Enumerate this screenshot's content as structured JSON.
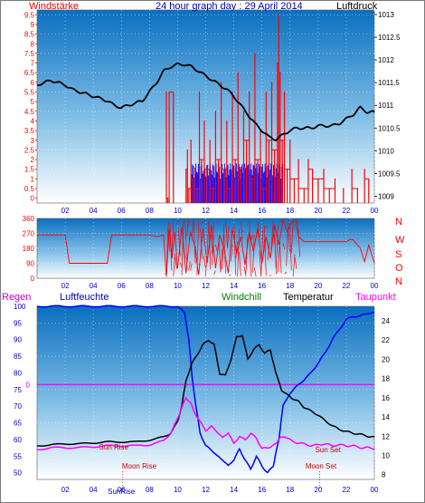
{
  "header": {
    "left_title": "Windstärke",
    "center_title": "24 hour graph day : 29 April 2014",
    "right_title": "Luftdruck",
    "bottom_regen": "Regen",
    "bottom_luftfeuchte": "Luftfeuchte",
    "bottom_windchill": "Windchill",
    "bottom_temperatur": "Temperatur",
    "bottom_taupunkt": "Taupunkt"
  },
  "colors": {
    "wind": "#ff0000",
    "pressure": "#000000",
    "gust": "#0000ff",
    "humidity": "#0000ff",
    "temperature": "#000000",
    "dewpoint": "#ff00ff",
    "windchill": "#008000",
    "rain": "#ff00ff",
    "bg_top": "#0b74c2",
    "bg_bottom": "#ffffff"
  },
  "chart_data": [
    {
      "type": "line",
      "name": "wind-pressure",
      "x_ticks": [
        "02",
        "04",
        "06",
        "08",
        "10",
        "12",
        "14",
        "16",
        "18",
        "20",
        "22",
        "00"
      ],
      "xlim": [
        0,
        24
      ],
      "ylabel_left": "Windstärke",
      "ylabel_right": "Luftdruck",
      "y_left_ticks": [
        "0",
        "0.5",
        "1",
        "1.5",
        "2",
        "2.5",
        "3",
        "3.5",
        "4",
        "4.5",
        "5",
        "5.5",
        "6",
        "6.5",
        "7",
        "7.5",
        "8",
        "8.5",
        "9",
        "9.5"
      ],
      "y_left_lim": [
        -0.25,
        9.75
      ],
      "y_right_ticks": [
        "1009",
        "1009.5",
        "1010",
        "1010.5",
        "1011",
        "1011.5",
        "1012",
        "1012.5",
        "1013"
      ],
      "y_right_lim": [
        1008.85,
        1013.1
      ],
      "pressure": {
        "x": [
          0.0,
          0.5,
          1.0,
          1.5,
          2.0,
          2.5,
          3.0,
          3.5,
          4.0,
          4.5,
          5.0,
          5.5,
          6.0,
          6.5,
          7.0,
          7.5,
          8.0,
          8.5,
          9.0,
          9.5,
          10.0,
          10.5,
          11.0,
          11.5,
          12.0,
          12.5,
          13.0,
          13.5,
          14.0,
          14.5,
          15.0,
          15.5,
          16.0,
          16.5,
          17.0,
          17.5,
          18.0,
          18.5,
          19.0,
          19.5,
          20.0,
          20.5,
          21.0,
          21.5,
          22.0,
          22.5,
          23.0,
          23.5,
          24.0
        ],
        "y": [
          1011.45,
          1011.5,
          1011.55,
          1011.5,
          1011.45,
          1011.35,
          1011.3,
          1011.25,
          1011.2,
          1011.15,
          1011.1,
          1011.0,
          1010.95,
          1011.0,
          1011.05,
          1011.1,
          1011.3,
          1011.5,
          1011.75,
          1011.85,
          1011.9,
          1011.9,
          1011.85,
          1011.75,
          1011.65,
          1011.55,
          1011.45,
          1011.35,
          1011.2,
          1011.0,
          1010.8,
          1010.6,
          1010.45,
          1010.3,
          1010.25,
          1010.35,
          1010.45,
          1010.5,
          1010.5,
          1010.5,
          1010.55,
          1010.55,
          1010.55,
          1010.6,
          1010.7,
          1010.8,
          1010.95,
          1010.85,
          1010.85
        ]
      },
      "wind": {
        "x": [
          9.2,
          9.3,
          9.4,
          9.7,
          10.6,
          10.7,
          10.8,
          10.95,
          11.1,
          11.25,
          11.4,
          11.55,
          11.7,
          11.9,
          12.1,
          12.3,
          12.5,
          12.7,
          12.9,
          13.1,
          13.3,
          13.5,
          13.7,
          13.9,
          14.1,
          14.3,
          14.5,
          14.7,
          14.9,
          15.1,
          15.3,
          15.5,
          15.7,
          15.9,
          16.1,
          16.3,
          16.5,
          16.7,
          16.9,
          17.1,
          17.2,
          17.3,
          17.45,
          17.6,
          17.8,
          18.0,
          18.3,
          18.6,
          19.0,
          19.3,
          19.6,
          20.0,
          20.4,
          20.8,
          21.2,
          21.8,
          22.4,
          22.8,
          23.3,
          23.6
        ],
        "y": [
          5.5,
          0,
          5.5,
          5.5,
          1.5,
          2.5,
          0.5,
          3,
          1,
          1.5,
          0.5,
          5.5,
          2,
          4,
          1.5,
          3,
          0.5,
          4.5,
          2,
          6,
          1.5,
          4,
          0.5,
          5.5,
          2,
          6.5,
          1.5,
          4.5,
          3,
          5.5,
          1,
          7.5,
          2,
          3.5,
          0.5,
          5.5,
          3,
          6,
          2.5,
          7,
          9.5,
          6.5,
          3,
          5.5,
          1.5,
          3,
          1,
          2,
          0.5,
          2,
          1.5,
          1,
          1.5,
          0.5,
          1,
          0.5,
          1.5,
          0.5,
          1.5,
          1
        ]
      },
      "gust": {
        "x_from": 11.0,
        "x_to": 17.5,
        "level": 1.8
      }
    },
    {
      "type": "line",
      "name": "wind-direction",
      "x_ticks": [
        "02",
        "04",
        "06",
        "08",
        "10",
        "12",
        "14",
        "16",
        "18",
        "20",
        "22",
        "00"
      ],
      "xlim": [
        0,
        24
      ],
      "y_ticks": [
        "0",
        "90",
        "180",
        "270",
        "360"
      ],
      "ylim": [
        0,
        360
      ],
      "direction_labels": [
        "N",
        "W",
        "S",
        "O",
        "N"
      ],
      "x": [
        0,
        0.5,
        1.0,
        1.5,
        2.0,
        2.3,
        2.5,
        3.0,
        3.5,
        4.0,
        4.5,
        5.0,
        5.3,
        5.5,
        6.0,
        6.3,
        6.5,
        7.0,
        7.3,
        7.5,
        8.0,
        8.5,
        9.0,
        9.2,
        9.4,
        9.6,
        9.8,
        10.0,
        10.3,
        10.6,
        10.9,
        11.2,
        11.5,
        11.8,
        12.1,
        12.4,
        12.7,
        13.0,
        13.3,
        13.6,
        13.9,
        14.2,
        14.5,
        14.8,
        15.1,
        15.4,
        15.7,
        16.0,
        16.3,
        16.6,
        16.9,
        17.2,
        17.5,
        17.8,
        18.1,
        18.4,
        18.6,
        19.0,
        19.5,
        20.0,
        20.5,
        21.0,
        21.5,
        22.0,
        22.3,
        22.5,
        23.0,
        23.3,
        23.6,
        24.0
      ],
      "y": [
        260,
        260,
        260,
        260,
        260,
        90,
        90,
        90,
        90,
        90,
        90,
        90,
        260,
        260,
        260,
        260,
        260,
        260,
        260,
        260,
        260,
        250,
        260,
        10,
        300,
        120,
        280,
        60,
        310,
        30,
        280,
        200,
        20,
        300,
        90,
        320,
        60,
        260,
        180,
        30,
        300,
        150,
        250,
        80,
        280,
        160,
        300,
        90,
        250,
        120,
        320,
        200,
        350,
        280,
        340,
        350,
        250,
        220,
        220,
        220,
        220,
        220,
        220,
        220,
        235,
        230,
        180,
        100,
        200,
        90
      ]
    },
    {
      "type": "line",
      "name": "humidity-temperature",
      "x_ticks": [
        "02",
        "04",
        "06",
        "08",
        "10",
        "12",
        "14",
        "16",
        "18",
        "20",
        "22",
        "00"
      ],
      "xlim": [
        0,
        24
      ],
      "y_left_ticks": [
        "50",
        "55",
        "60",
        "65",
        "70",
        "75",
        "80",
        "85",
        "90",
        "95",
        "100"
      ],
      "y_left_lim": [
        48,
        100
      ],
      "y_right_ticks": [
        "8",
        "10",
        "12",
        "14",
        "16",
        "18",
        "20",
        "22",
        "24"
      ],
      "y_right_lim": [
        7.5,
        25.5
      ],
      "rain_marker": {
        "label": "0",
        "value": 0
      },
      "annotations": [
        "Sun Rise",
        "Moon Rise",
        "Sun Set",
        "Moon Set",
        "SunRise"
      ],
      "humidity": {
        "x": [
          0,
          1,
          2,
          3,
          4,
          5,
          6,
          7,
          8,
          9,
          10.0,
          10.5,
          10.8,
          11.0,
          11.3,
          11.6,
          12.0,
          12.4,
          12.8,
          13.2,
          13.6,
          14.0,
          14.4,
          14.8,
          15.2,
          15.6,
          16.0,
          16.4,
          16.8,
          17.0,
          17.2,
          17.5,
          18.0,
          18.5,
          19.0,
          19.5,
          20.0,
          20.5,
          21.0,
          21.5,
          22.0,
          22.5,
          23.0,
          23.5,
          24.0
        ],
        "y": [
          100,
          100,
          100,
          100,
          100,
          100,
          100,
          100,
          100,
          100,
          100,
          98,
          90,
          80,
          70,
          62,
          58,
          57,
          55,
          54,
          52,
          54,
          57,
          54,
          51,
          55,
          52,
          50,
          52,
          56,
          60,
          70,
          74,
          76,
          78,
          80,
          83,
          86,
          90,
          93,
          96,
          97,
          97,
          98,
          98
        ]
      },
      "temperature": {
        "x": [
          0,
          1,
          2,
          3,
          4,
          5,
          6,
          7,
          8,
          9,
          9.5,
          10.0,
          10.3,
          10.6,
          11.0,
          11.4,
          11.8,
          12.2,
          12.6,
          13.0,
          13.4,
          13.8,
          14.2,
          14.6,
          15.0,
          15.4,
          15.8,
          16.2,
          16.6,
          17.0,
          17.4,
          17.8,
          18.2,
          18.6,
          19.0,
          19.5,
          20.0,
          20.5,
          21.0,
          21.5,
          22.0,
          22.5,
          23.0,
          23.5,
          24.0
        ],
        "y": [
          11.0,
          11.1,
          11.2,
          11.2,
          11.3,
          11.4,
          11.4,
          11.4,
          11.6,
          11.9,
          12.3,
          13.5,
          15.2,
          17.8,
          19.5,
          20.5,
          21.5,
          22.0,
          21.5,
          18.5,
          18.3,
          20.0,
          22.3,
          22.5,
          20.0,
          21.0,
          21.5,
          20.6,
          21.0,
          18.5,
          16.8,
          16.3,
          15.9,
          15.6,
          15.0,
          14.6,
          14.2,
          13.6,
          13.1,
          12.7,
          12.5,
          12.3,
          12.2,
          12.0,
          11.9
        ]
      },
      "dewpoint": {
        "x": [
          0,
          1,
          2,
          3,
          4,
          5,
          6,
          7,
          8,
          9,
          9.5,
          10.0,
          10.3,
          10.6,
          10.9,
          11.2,
          11.6,
          12.0,
          12.4,
          12.8,
          13.2,
          13.6,
          14.0,
          14.4,
          14.8,
          15.2,
          15.6,
          16.0,
          16.4,
          16.8,
          17.0,
          17.3,
          17.6,
          18.0,
          18.5,
          19.0,
          19.5,
          20.0,
          20.5,
          21.0,
          21.5,
          22.0,
          22.5,
          23.0,
          23.5,
          24.0
        ],
        "y": [
          10.6,
          10.8,
          10.8,
          10.8,
          10.9,
          11.0,
          11.0,
          11.0,
          11.1,
          11.5,
          12.3,
          13.8,
          15.0,
          16.0,
          15.5,
          14.5,
          13.5,
          12.6,
          13.0,
          12.5,
          11.8,
          12.4,
          11.2,
          12.0,
          11.6,
          12.3,
          11.8,
          10.7,
          10.8,
          11.0,
          11.3,
          11.8,
          12.0,
          11.6,
          11.3,
          11.2,
          11.0,
          11.1,
          11.2,
          11.0,
          11.1,
          11.0,
          11.0,
          10.8,
          10.8,
          10.7
        ]
      }
    }
  ]
}
